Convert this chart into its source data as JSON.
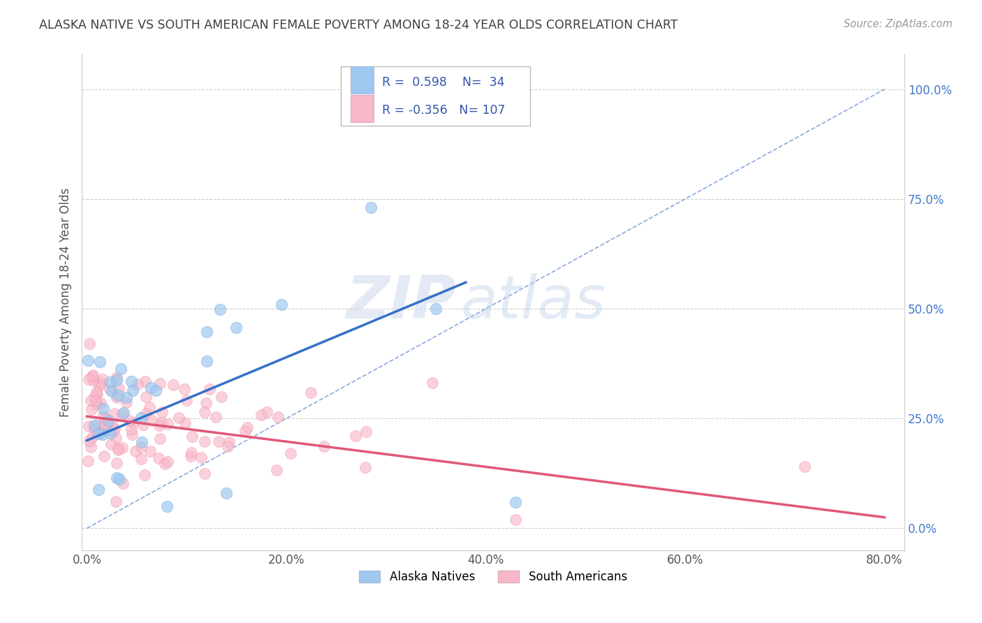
{
  "title": "ALASKA NATIVE VS SOUTH AMERICAN FEMALE POVERTY AMONG 18-24 YEAR OLDS CORRELATION CHART",
  "source": "Source: ZipAtlas.com",
  "ylabel": "Female Poverty Among 18-24 Year Olds",
  "xlim": [
    -0.005,
    0.82
  ],
  "ylim": [
    -0.05,
    1.08
  ],
  "xticks": [
    0.0,
    0.2,
    0.4,
    0.6,
    0.8
  ],
  "xticklabels": [
    "0.0%",
    "20.0%",
    "40.0%",
    "60.0%",
    "80.0%"
  ],
  "yticks": [
    0.0,
    0.25,
    0.5,
    0.75,
    1.0
  ],
  "yticklabels": [
    "0.0%",
    "25.0%",
    "50.0%",
    "75.0%",
    "100.0%"
  ],
  "alaska_R": 0.598,
  "alaska_N": 34,
  "south_R": -0.356,
  "south_N": 107,
  "alaska_color": "#9ec8f0",
  "alaska_edge_color": "#7aafdd",
  "south_color": "#f8b8c8",
  "south_edge_color": "#ee90a8",
  "alaska_line_color": "#3570c8",
  "south_line_color": "#e05878",
  "ref_line_color": "#88aadd",
  "background_color": "#ffffff",
  "grid_color": "#cccccc",
  "title_color": "#404040",
  "watermark_zip": "ZIP",
  "watermark_atlas": "atlas",
  "legend_label_blue": "Alaska Natives",
  "legend_label_pink": "South Americans",
  "legend_text_color": "#3355aa",
  "yaxis_label_color": "#4477cc",
  "alaska_line_x0": 0.0,
  "alaska_line_y0": 0.2,
  "alaska_line_x1": 0.38,
  "alaska_line_y1": 0.56,
  "south_line_x0": 0.0,
  "south_line_y0": 0.255,
  "south_line_x1": 0.8,
  "south_line_y1": 0.025,
  "ref_line_x0": 0.0,
  "ref_line_y0": 0.0,
  "ref_line_x1": 0.8,
  "ref_line_y1": 1.0
}
